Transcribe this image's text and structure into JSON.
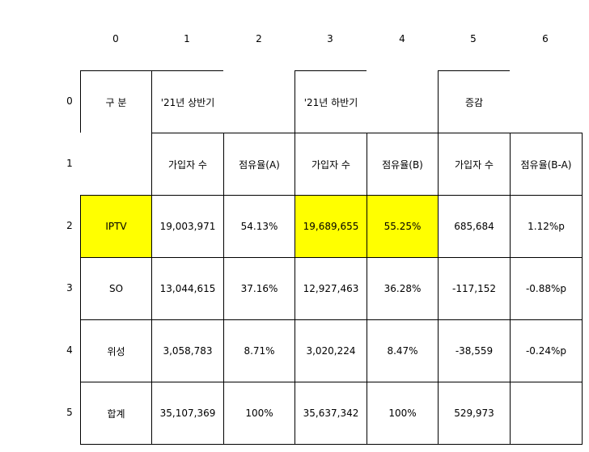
{
  "col_headers": [
    "0",
    "1",
    "2",
    "3",
    "4",
    "5",
    "6"
  ],
  "row_headers": [
    "0",
    "1",
    "2",
    "3",
    "4",
    "5"
  ],
  "highlight_color": "#ffff00",
  "rows": [
    [
      "구 분",
      "'21년 상반기",
      "",
      "'21년 하반기",
      "",
      "증감",
      ""
    ],
    [
      "",
      "가입자 수",
      "점유율(A)",
      "가입자 수",
      "점유율(B)",
      "가입자 수",
      "점유율(B-A)"
    ],
    [
      "IPTV",
      "19,003,971",
      "54.13%",
      "19,689,655",
      "55.25%",
      "685,684",
      "1.12%p"
    ],
    [
      "SO",
      "13,044,615",
      "37.16%",
      "12,927,463",
      "36.28%",
      "-117,152",
      "-0.88%p"
    ],
    [
      "위성",
      "3,058,783",
      "8.71%",
      "3,020,224",
      "8.47%",
      "-38,559",
      "-0.24%p"
    ],
    [
      "합계",
      "35,107,369",
      "100%",
      "35,637,342",
      "100%",
      "529,973",
      ""
    ]
  ]
}
